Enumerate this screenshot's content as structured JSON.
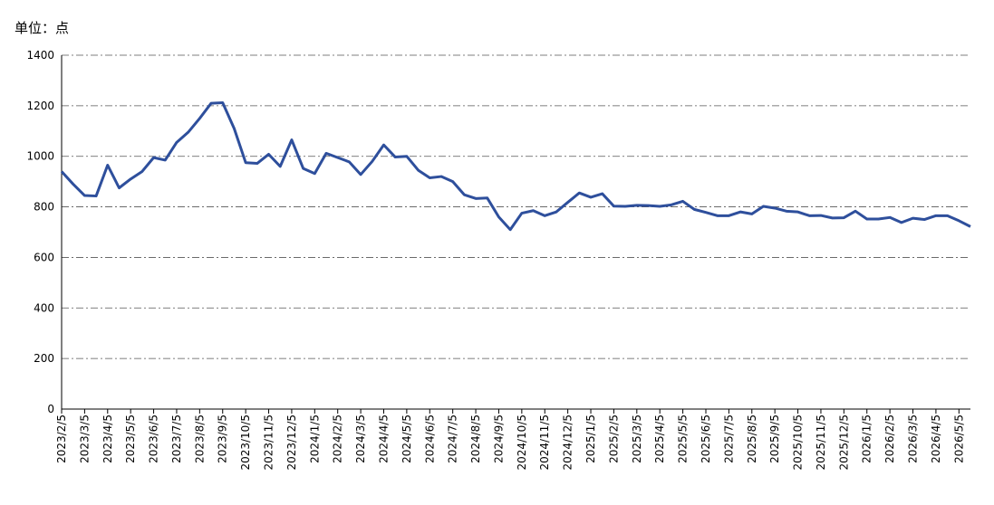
{
  "chart_data": {
    "type": "line",
    "unit_label": "单位：点",
    "categories": [
      "2023/2/5",
      null,
      "2023/3/5",
      null,
      "2023/4/5",
      null,
      "2023/5/5",
      null,
      "2023/6/5",
      null,
      "2023/7/5",
      null,
      "2023/8/5",
      null,
      "2023/9/5",
      null,
      "2023/10/5",
      null,
      "2023/11/5",
      null,
      "2023/12/5",
      null,
      "2024/1/5",
      null,
      "2024/2/5",
      null,
      "2024/3/5",
      null,
      "2024/4/5",
      null,
      "2024/5/5",
      null,
      "2024/6/5",
      null,
      "2024/7/5",
      null,
      "2024/8/5",
      null,
      "2024/9/5",
      null,
      "2024/10/5",
      null,
      "2024/11/5",
      null,
      "2024/12/5",
      null,
      "2025/1/5",
      null,
      "2025/2/5",
      null,
      "2025/3/5",
      null,
      "2025/4/5",
      null,
      "2025/5/5",
      null,
      "2025/6/5",
      null,
      "2025/7/5",
      null,
      "2025/8/5",
      null,
      "2025/9/5",
      null,
      "2025/10/5",
      null,
      "2025/11/5",
      null,
      "2025/12/5",
      null,
      "2026/1/5",
      null,
      "2026/2/5",
      null,
      "2026/3/5",
      null,
      "2026/4/5",
      null,
      "2026/5/5",
      null
    ],
    "series": [
      {
        "color": "#2e4f9c",
        "values": [
          940,
          890,
          845,
          843,
          965,
          875,
          910,
          940,
          995,
          985,
          1055,
          1095,
          1150,
          1210,
          1212,
          1110,
          975,
          972,
          1008,
          960,
          1065,
          952,
          932,
          1012,
          995,
          978,
          928,
          980,
          1045,
          997,
          1000,
          945,
          915,
          920,
          900,
          848,
          833,
          835,
          760,
          710,
          775,
          785,
          765,
          780,
          818,
          855,
          838,
          852,
          803,
          802,
          806,
          805,
          802,
          808,
          822,
          790,
          778,
          765,
          765,
          780,
          772,
          802,
          795,
          783,
          780,
          765,
          766,
          756,
          757,
          783,
          752,
          752,
          758,
          738,
          755,
          750,
          765,
          765,
          745,
          722
        ]
      }
    ],
    "ylim": [
      0,
      1400
    ],
    "yticks": [
      0,
      200,
      400,
      600,
      800,
      1000,
      1200,
      1400
    ],
    "grid": true
  }
}
